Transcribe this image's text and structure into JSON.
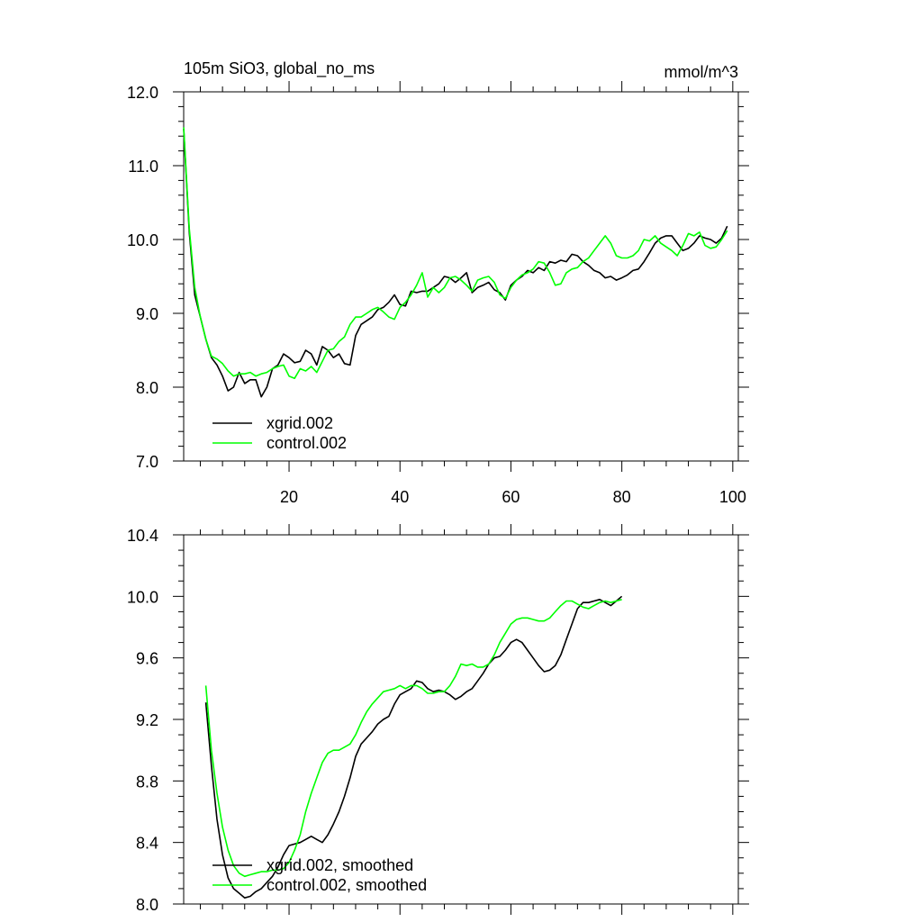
{
  "chart_data": [
    {
      "type": "line",
      "title": "105m SiO3, global_no_ms",
      "units": "mmol/m^3",
      "xlabel": "",
      "ylabel": "",
      "xlim": [
        1,
        101
      ],
      "ylim": [
        7.0,
        12.0
      ],
      "x_ticks": [
        20,
        40,
        60,
        80,
        100
      ],
      "y_ticks": [
        "7.0",
        "8.0",
        "9.0",
        "10.0",
        "11.0",
        "12.0"
      ],
      "legend_position": "lower-left",
      "series": [
        {
          "name": "xgrid.002",
          "color": "#000000",
          "x_start": 1,
          "values": [
            11.5,
            10.1,
            9.25,
            8.95,
            8.65,
            8.4,
            8.3,
            8.15,
            7.95,
            8.0,
            8.2,
            8.05,
            8.1,
            8.1,
            7.87,
            8.0,
            8.25,
            8.3,
            8.45,
            8.4,
            8.33,
            8.35,
            8.5,
            8.45,
            8.3,
            8.55,
            8.5,
            8.4,
            8.45,
            8.32,
            8.3,
            8.7,
            8.85,
            8.9,
            8.95,
            9.05,
            9.08,
            9.15,
            9.25,
            9.12,
            9.1,
            9.3,
            9.28,
            9.3,
            9.3,
            9.35,
            9.4,
            9.5,
            9.48,
            9.42,
            9.48,
            9.55,
            9.28,
            9.35,
            9.38,
            9.42,
            9.32,
            9.28,
            9.18,
            9.38,
            9.45,
            9.5,
            9.58,
            9.55,
            9.62,
            9.58,
            9.7,
            9.68,
            9.72,
            9.7,
            9.8,
            9.78,
            9.7,
            9.65,
            9.58,
            9.55,
            9.48,
            9.5,
            9.45,
            9.48,
            9.52,
            9.58,
            9.6,
            9.7,
            9.82,
            9.95,
            10.02,
            10.05,
            10.05,
            9.95,
            9.85,
            9.88,
            9.95,
            10.05,
            10.02,
            10.0,
            9.95,
            10.02,
            10.18
          ]
        },
        {
          "name": "control.002",
          "color": "#00ff00",
          "x_start": 1,
          "values": [
            11.52,
            10.15,
            9.35,
            8.95,
            8.65,
            8.42,
            8.38,
            8.32,
            8.22,
            8.15,
            8.18,
            8.18,
            8.2,
            8.15,
            8.18,
            8.2,
            8.25,
            8.28,
            8.3,
            8.15,
            8.12,
            8.25,
            8.22,
            8.28,
            8.2,
            8.35,
            8.5,
            8.52,
            8.62,
            8.68,
            8.85,
            8.95,
            8.95,
            9.0,
            9.05,
            9.08,
            9.02,
            8.95,
            8.92,
            9.08,
            9.15,
            9.25,
            9.38,
            9.55,
            9.22,
            9.35,
            9.28,
            9.35,
            9.48,
            9.5,
            9.45,
            9.38,
            9.3,
            9.45,
            9.48,
            9.5,
            9.42,
            9.25,
            9.2,
            9.35,
            9.45,
            9.52,
            9.55,
            9.6,
            9.7,
            9.68,
            9.55,
            9.38,
            9.4,
            9.55,
            9.6,
            9.62,
            9.7,
            9.75,
            9.85,
            9.95,
            10.05,
            9.95,
            9.78,
            9.75,
            9.75,
            9.78,
            9.85,
            10.0,
            9.98,
            10.05,
            9.95,
            9.9,
            9.85,
            9.78,
            9.92,
            10.08,
            10.05,
            10.1,
            9.92,
            9.88,
            9.9,
            10.0,
            10.12
          ]
        }
      ]
    },
    {
      "type": "line",
      "title": "",
      "xlabel": "",
      "ylabel": "",
      "xlim": [
        1,
        101
      ],
      "ylim": [
        8.0,
        10.4
      ],
      "x_ticks": [
        20,
        40,
        60,
        80,
        100
      ],
      "y_ticks": [
        "8.0",
        "8.4",
        "8.8",
        "9.2",
        "9.6",
        "10.0",
        "10.4"
      ],
      "legend_position": "lower-left",
      "series": [
        {
          "name": "xgrid.002, smoothed",
          "color": "#000000",
          "x_start": 5,
          "values": [
            9.31,
            8.9,
            8.55,
            8.32,
            8.17,
            8.1,
            8.07,
            8.04,
            8.05,
            8.08,
            8.1,
            8.14,
            8.18,
            8.24,
            8.32,
            8.38,
            8.39,
            8.4,
            8.42,
            8.44,
            8.42,
            8.4,
            8.45,
            8.52,
            8.6,
            8.7,
            8.82,
            8.96,
            9.04,
            9.08,
            9.12,
            9.17,
            9.2,
            9.22,
            9.3,
            9.36,
            9.38,
            9.4,
            9.45,
            9.44,
            9.4,
            9.38,
            9.39,
            9.38,
            9.36,
            9.33,
            9.35,
            9.38,
            9.4,
            9.45,
            9.5,
            9.56,
            9.6,
            9.61,
            9.65,
            9.7,
            9.72,
            9.7,
            9.65,
            9.6,
            9.55,
            9.51,
            9.52,
            9.55,
            9.62,
            9.72,
            9.82,
            9.92,
            9.96,
            9.96,
            9.97,
            9.98,
            9.96,
            9.94,
            9.97,
            10.0
          ]
        },
        {
          "name": "control.002, smoothed",
          "color": "#00ff00",
          "x_start": 5,
          "values": [
            9.42,
            9.0,
            8.72,
            8.5,
            8.35,
            8.25,
            8.2,
            8.18,
            8.19,
            8.2,
            8.21,
            8.21,
            8.22,
            8.22,
            8.23,
            8.27,
            8.35,
            8.45,
            8.6,
            8.72,
            8.82,
            8.92,
            8.98,
            9.0,
            9.0,
            9.02,
            9.04,
            9.1,
            9.18,
            9.25,
            9.3,
            9.34,
            9.38,
            9.39,
            9.4,
            9.42,
            9.4,
            9.42,
            9.42,
            9.4,
            9.37,
            9.37,
            9.38,
            9.38,
            9.42,
            9.48,
            9.56,
            9.55,
            9.56,
            9.54,
            9.54,
            9.56,
            9.62,
            9.7,
            9.76,
            9.82,
            9.85,
            9.86,
            9.86,
            9.85,
            9.84,
            9.84,
            9.86,
            9.9,
            9.94,
            9.97,
            9.97,
            9.95,
            9.93,
            9.92,
            9.94,
            9.96,
            9.97,
            9.96,
            9.97,
            9.98
          ]
        }
      ]
    }
  ]
}
